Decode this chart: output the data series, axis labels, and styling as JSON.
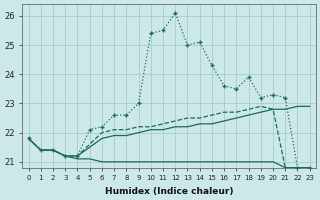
{
  "xlabel": "Humidex (Indice chaleur)",
  "bg_color": "#cce8e8",
  "grid_color": "#aacccc",
  "line_color": "#1a6b5a",
  "xlim": [
    -0.5,
    23.5
  ],
  "ylim": [
    20.8,
    26.4
  ],
  "yticks": [
    21,
    22,
    23,
    24,
    25,
    26
  ],
  "xticks": [
    0,
    1,
    2,
    3,
    4,
    5,
    6,
    7,
    8,
    9,
    10,
    11,
    12,
    13,
    14,
    15,
    16,
    17,
    18,
    19,
    20,
    21,
    22,
    23
  ],
  "s1_x": [
    0,
    1,
    2,
    3,
    4,
    5,
    6,
    7,
    8,
    9,
    10,
    11,
    12,
    13,
    14,
    15,
    16,
    17,
    18,
    19,
    20,
    21,
    22,
    23
  ],
  "s1_y": [
    21.8,
    21.4,
    21.4,
    21.2,
    21.1,
    21.1,
    21.0,
    21.0,
    21.0,
    21.0,
    21.0,
    21.0,
    21.0,
    21.0,
    21.0,
    21.0,
    21.0,
    21.0,
    21.0,
    21.0,
    21.0,
    20.8,
    20.8,
    20.8
  ],
  "s2_x": [
    0,
    1,
    2,
    3,
    4,
    5,
    6,
    7,
    8,
    9,
    10,
    11,
    12,
    13,
    14,
    15,
    16,
    17,
    18,
    19,
    20,
    21,
    22,
    23
  ],
  "s2_y": [
    21.8,
    21.4,
    21.4,
    21.2,
    21.2,
    21.5,
    21.8,
    21.9,
    21.9,
    22.0,
    22.1,
    22.1,
    22.2,
    22.2,
    22.3,
    22.3,
    22.4,
    22.5,
    22.6,
    22.7,
    22.8,
    22.8,
    22.9,
    22.9
  ],
  "s3_x": [
    0,
    1,
    2,
    3,
    4,
    5,
    6,
    7,
    8,
    9,
    10,
    11,
    12,
    13,
    14,
    15,
    16,
    17,
    18,
    19,
    20,
    21,
    22,
    23
  ],
  "s3_y": [
    21.8,
    21.4,
    21.4,
    21.2,
    21.2,
    21.6,
    22.0,
    22.1,
    22.1,
    22.2,
    22.2,
    22.3,
    22.4,
    22.5,
    22.5,
    22.6,
    22.7,
    22.7,
    22.8,
    22.9,
    22.8,
    20.8,
    20.8,
    20.8
  ],
  "s4_x": [
    0,
    1,
    2,
    3,
    4,
    5,
    6,
    7,
    8,
    9,
    10,
    11,
    12,
    13,
    14,
    15,
    16,
    17,
    18,
    19,
    20,
    21,
    22,
    23
  ],
  "s4_y": [
    21.8,
    21.4,
    21.4,
    21.2,
    21.2,
    22.1,
    22.2,
    22.6,
    22.6,
    23.0,
    25.4,
    25.5,
    26.1,
    25.0,
    25.1,
    24.3,
    23.6,
    23.5,
    23.9,
    23.2,
    23.3,
    23.2,
    20.8,
    20.8
  ]
}
